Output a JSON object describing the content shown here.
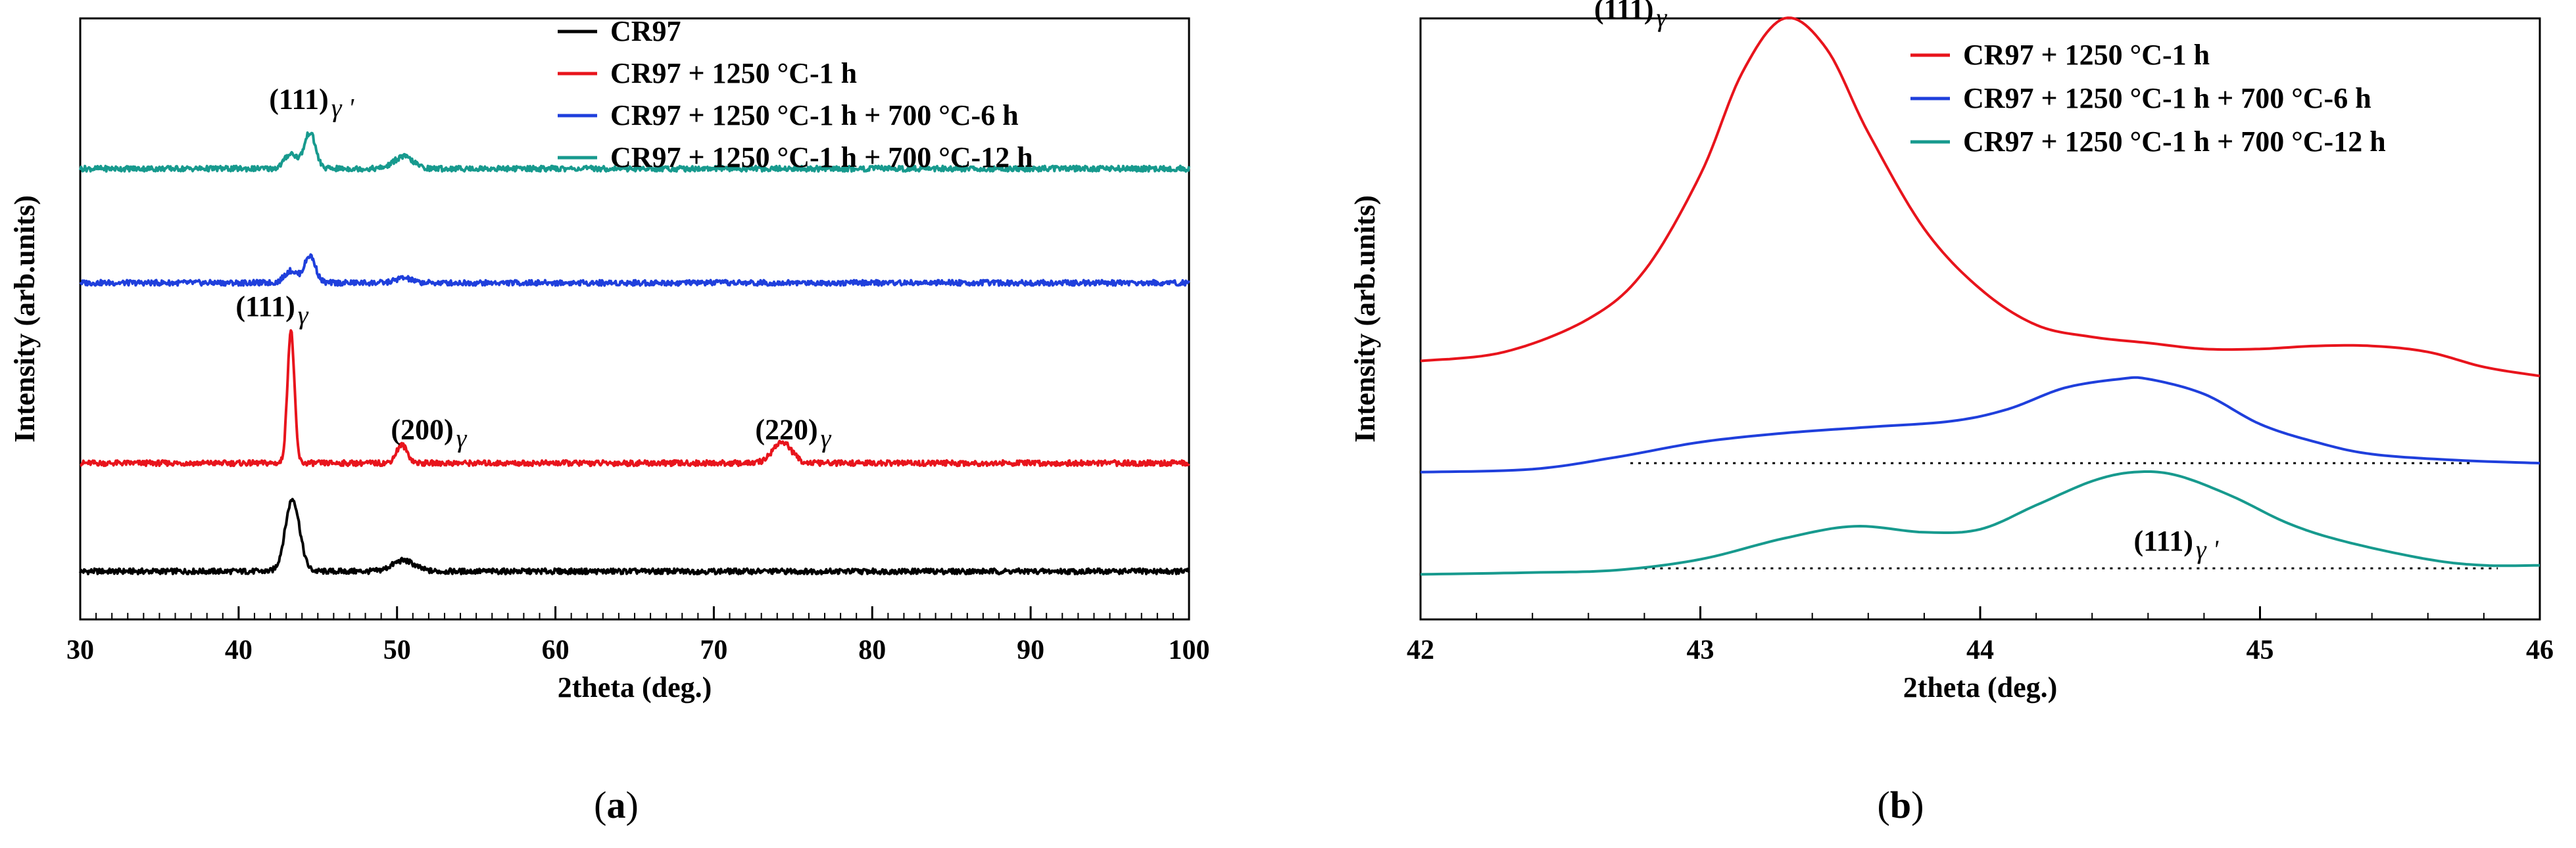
{
  "figure": {
    "panel_labels": [
      {
        "open": "(",
        "letter": "a",
        "close": ")"
      },
      {
        "open": "(",
        "letter": "b",
        "close": ")"
      }
    ]
  },
  "colors": {
    "CR97": "#000000",
    "CR97 + 1250 °C-1 h": "#e8141c",
    "CR97 + 1250 °C-1 h  + 700 °C-6 h": "#1f3fdc",
    "CR97 + 1250 °C-1 h  + 700 °C-12 h": "#179a8e"
  },
  "chart_data": [
    {
      "id": "a",
      "type": "line",
      "title": "",
      "xlabel": "2theta (deg.)",
      "ylabel": "Intensity (arb.units)",
      "xlim": [
        30,
        100
      ],
      "ylim": [
        0,
        10
      ],
      "xticks": [
        30,
        40,
        50,
        60,
        70,
        80,
        90,
        100
      ],
      "yticks_shown": false,
      "grid": false,
      "legend_position": "top-right",
      "series": [
        {
          "name": "CR97",
          "baseline": 0.8,
          "peaks": [
            {
              "x": 43.4,
              "h": 1.2,
              "w": 0.45
            },
            {
              "x": 50.4,
              "h": 0.18,
              "w": 0.7
            }
          ]
        },
        {
          "name": "CR97 + 1250 °C-1 h",
          "baseline": 2.6,
          "peaks": [
            {
              "x": 43.3,
              "h": 2.2,
              "w": 0.22
            },
            {
              "x": 50.3,
              "h": 0.3,
              "w": 0.35
            },
            {
              "x": 74.3,
              "h": 0.35,
              "w": 0.6
            }
          ]
        },
        {
          "name": "CR97 + 1250 °C-1 h  + 700 °C-6 h",
          "baseline": 5.6,
          "peaks": [
            {
              "x": 43.3,
              "h": 0.2,
              "w": 0.4
            },
            {
              "x": 44.5,
              "h": 0.45,
              "w": 0.35
            },
            {
              "x": 50.4,
              "h": 0.08,
              "w": 0.5
            }
          ]
        },
        {
          "name": "CR97 + 1250 °C-1 h  + 700 °C-12 h",
          "baseline": 7.5,
          "peaks": [
            {
              "x": 43.3,
              "h": 0.25,
              "w": 0.4
            },
            {
              "x": 44.5,
              "h": 0.6,
              "w": 0.35
            },
            {
              "x": 50.4,
              "h": 0.2,
              "w": 0.6
            }
          ]
        }
      ],
      "annotations": [
        {
          "base": "(111)",
          "sub": "γ",
          "prime": "'",
          "x": 44.6,
          "y": 8.5
        },
        {
          "base": "(111)",
          "sub": "γ",
          "prime": "",
          "x": 42.1,
          "y": 5.05
        },
        {
          "base": "(200)",
          "sub": "γ",
          "prime": "",
          "x": 52.0,
          "y": 3.0
        },
        {
          "base": "(220)",
          "sub": "γ",
          "prime": "",
          "x": 75.0,
          "y": 3.0
        }
      ]
    },
    {
      "id": "b",
      "type": "line",
      "title": "",
      "xlabel": "2theta (deg.)",
      "ylabel": "Intensity (arb.units)",
      "xlim": [
        42,
        46
      ],
      "ylim": [
        0,
        10
      ],
      "xticks": [
        42,
        43,
        44,
        45,
        46
      ],
      "yticks_shown": false,
      "grid": false,
      "legend_position": "top-right",
      "series": [
        {
          "name": "CR97 + 1250 °C-1 h",
          "baseline": 4.3,
          "points": [
            [
              42.0,
              4.3
            ],
            [
              42.3,
              4.45
            ],
            [
              42.6,
              5.0
            ],
            [
              42.8,
              5.8
            ],
            [
              43.0,
              7.4
            ],
            [
              43.15,
              9.1
            ],
            [
              43.3,
              10.0
            ],
            [
              43.45,
              9.5
            ],
            [
              43.6,
              8.1
            ],
            [
              43.8,
              6.5
            ],
            [
              44.0,
              5.5
            ],
            [
              44.2,
              4.9
            ],
            [
              44.4,
              4.7
            ],
            [
              44.6,
              4.6
            ],
            [
              44.8,
              4.5
            ],
            [
              45.0,
              4.5
            ],
            [
              45.2,
              4.55
            ],
            [
              45.4,
              4.55
            ],
            [
              45.6,
              4.45
            ],
            [
              45.8,
              4.2
            ],
            [
              46.0,
              4.05
            ]
          ]
        },
        {
          "name": "CR97 + 1250 °C-1 h  + 700 °C-6 h",
          "baseline": 2.6,
          "points": [
            [
              42.0,
              2.45
            ],
            [
              42.4,
              2.5
            ],
            [
              42.7,
              2.7
            ],
            [
              43.0,
              2.95
            ],
            [
              43.3,
              3.1
            ],
            [
              43.6,
              3.2
            ],
            [
              43.9,
              3.3
            ],
            [
              44.1,
              3.5
            ],
            [
              44.3,
              3.85
            ],
            [
              44.5,
              4.0
            ],
            [
              44.6,
              4.0
            ],
            [
              44.8,
              3.75
            ],
            [
              45.0,
              3.25
            ],
            [
              45.2,
              2.95
            ],
            [
              45.4,
              2.75
            ],
            [
              45.7,
              2.65
            ],
            [
              46.0,
              2.6
            ]
          ]
        },
        {
          "name": "CR97 + 1250 °C-1 h  + 700 °C-12 h",
          "baseline": 0.85,
          "points": [
            [
              42.0,
              0.75
            ],
            [
              42.4,
              0.78
            ],
            [
              42.7,
              0.82
            ],
            [
              43.0,
              1.0
            ],
            [
              43.3,
              1.35
            ],
            [
              43.55,
              1.55
            ],
            [
              43.8,
              1.45
            ],
            [
              44.0,
              1.5
            ],
            [
              44.2,
              1.9
            ],
            [
              44.4,
              2.3
            ],
            [
              44.55,
              2.45
            ],
            [
              44.7,
              2.4
            ],
            [
              44.9,
              2.05
            ],
            [
              45.1,
              1.6
            ],
            [
              45.3,
              1.3
            ],
            [
              45.6,
              1.0
            ],
            [
              45.8,
              0.9
            ],
            [
              46.0,
              0.9
            ]
          ]
        }
      ],
      "dotted_baselines": [
        {
          "from": 42.75,
          "to": 45.75,
          "y": 2.6
        },
        {
          "from": 42.8,
          "to": 45.85,
          "y": 0.85
        }
      ],
      "annotations": [
        {
          "base": "(111)",
          "sub": "γ",
          "prime": "",
          "x": 42.75,
          "y": 10.0
        },
        {
          "base": "(111)",
          "sub": "γ",
          "prime": "'",
          "x": 44.7,
          "y": 1.15
        }
      ]
    }
  ]
}
